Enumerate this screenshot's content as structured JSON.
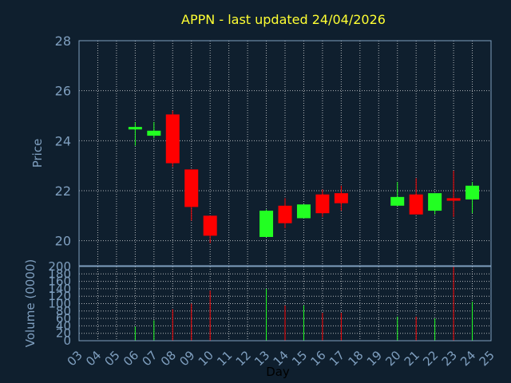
{
  "chart_data": {
    "type": "candlestick",
    "title": "APPN - last updated 24/04/2026",
    "xlabel": "Day",
    "ylabel": "Price",
    "volume_label": "Volume (0000)",
    "ylim": [
      19,
      28
    ],
    "volume_ylim": [
      0,
      200
    ],
    "price_ticks": [
      "20",
      "22",
      "24",
      "26",
      "28"
    ],
    "volume_ticks": [
      "0",
      "20",
      "40",
      "60",
      "80",
      "100",
      "120",
      "140",
      "160",
      "180",
      "200"
    ],
    "x_ticks": [
      "03",
      "04",
      "05",
      "06",
      "07",
      "08",
      "09",
      "10",
      "11",
      "12",
      "13",
      "14",
      "15",
      "16",
      "17",
      "18",
      "19",
      "20",
      "21",
      "22",
      "23",
      "24",
      "25"
    ],
    "grid": true,
    "colors": {
      "up": "#22ff22",
      "down": "#ff0000",
      "background": "#0f1f2e",
      "axis": "#7f9fbf",
      "title": "#ffff33"
    },
    "candles": [
      {
        "day": "06",
        "open": 24.45,
        "close": 24.55,
        "high": 24.75,
        "low": 23.8,
        "volume": 38
      },
      {
        "day": "07",
        "open": 24.2,
        "close": 24.4,
        "high": 24.75,
        "low": 24.1,
        "volume": 55
      },
      {
        "day": "08",
        "open": 25.05,
        "close": 23.1,
        "high": 25.2,
        "low": 22.95,
        "volume": 85
      },
      {
        "day": "09",
        "open": 22.85,
        "close": 21.35,
        "high": 22.85,
        "low": 20.8,
        "volume": 100
      },
      {
        "day": "10",
        "open": 21.0,
        "close": 20.2,
        "high": 21.0,
        "low": 19.9,
        "volume": 135
      },
      {
        "day": "13",
        "open": 20.15,
        "close": 21.2,
        "high": 21.25,
        "low": 20.15,
        "volume": 140
      },
      {
        "day": "14",
        "open": 21.4,
        "close": 20.7,
        "high": 21.7,
        "low": 20.5,
        "volume": 95
      },
      {
        "day": "15",
        "open": 20.9,
        "close": 21.45,
        "high": 21.45,
        "low": 20.9,
        "volume": 95
      },
      {
        "day": "16",
        "open": 21.85,
        "close": 21.1,
        "high": 22.05,
        "low": 20.95,
        "volume": 75
      },
      {
        "day": "17",
        "open": 21.9,
        "close": 21.5,
        "high": 22.2,
        "low": 21.2,
        "volume": 75
      },
      {
        "day": "20",
        "open": 21.4,
        "close": 21.75,
        "high": 22.35,
        "low": 21.4,
        "volume": 65
      },
      {
        "day": "21",
        "open": 21.85,
        "close": 21.05,
        "high": 22.5,
        "low": 21.05,
        "volume": 65
      },
      {
        "day": "22",
        "open": 21.2,
        "close": 21.9,
        "high": 21.9,
        "low": 21.05,
        "volume": 60
      },
      {
        "day": "23",
        "open": 21.7,
        "close": 21.6,
        "high": 22.8,
        "low": 20.95,
        "volume": 200
      },
      {
        "day": "24",
        "open": 21.65,
        "close": 22.2,
        "high": 22.35,
        "low": 21.1,
        "volume": 105
      }
    ]
  }
}
